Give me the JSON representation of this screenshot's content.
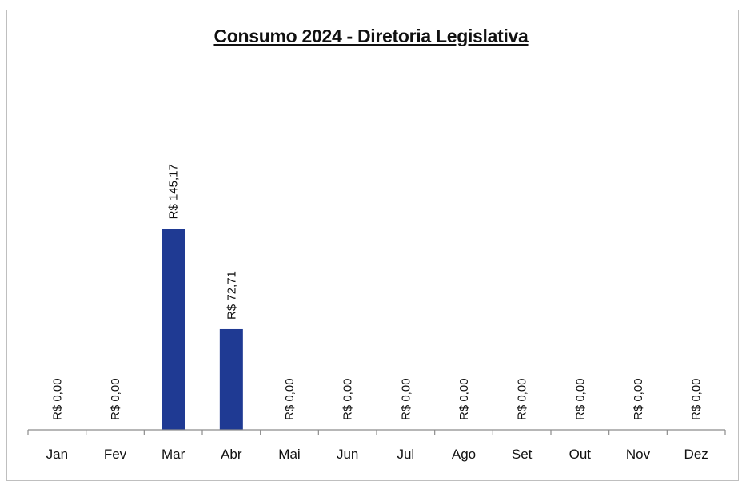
{
  "chart_data": {
    "type": "bar",
    "title": "Consumo 2024 - Diretoria Legislativa",
    "xlabel": "",
    "ylabel": "",
    "categories": [
      "Jan",
      "Fev",
      "Mar",
      "Abr",
      "Mai",
      "Jun",
      "Jul",
      "Ago",
      "Set",
      "Out",
      "Nov",
      "Dez"
    ],
    "values": [
      0,
      0,
      145.17,
      72.71,
      0,
      0,
      0,
      0,
      0,
      0,
      0,
      0
    ],
    "data_labels": [
      "R$ 0,00",
      "R$ 0,00",
      "R$ 145,17",
      "R$ 72,71",
      "R$ 0,00",
      "R$ 0,00",
      "R$ 0,00",
      "R$ 0,00",
      "R$ 0,00",
      "R$ 0,00",
      "R$ 0,00",
      "R$ 0,00"
    ],
    "ylim": [
      0,
      270
    ],
    "grid": false,
    "legend": "none",
    "bar_color": "#1f3a93"
  }
}
